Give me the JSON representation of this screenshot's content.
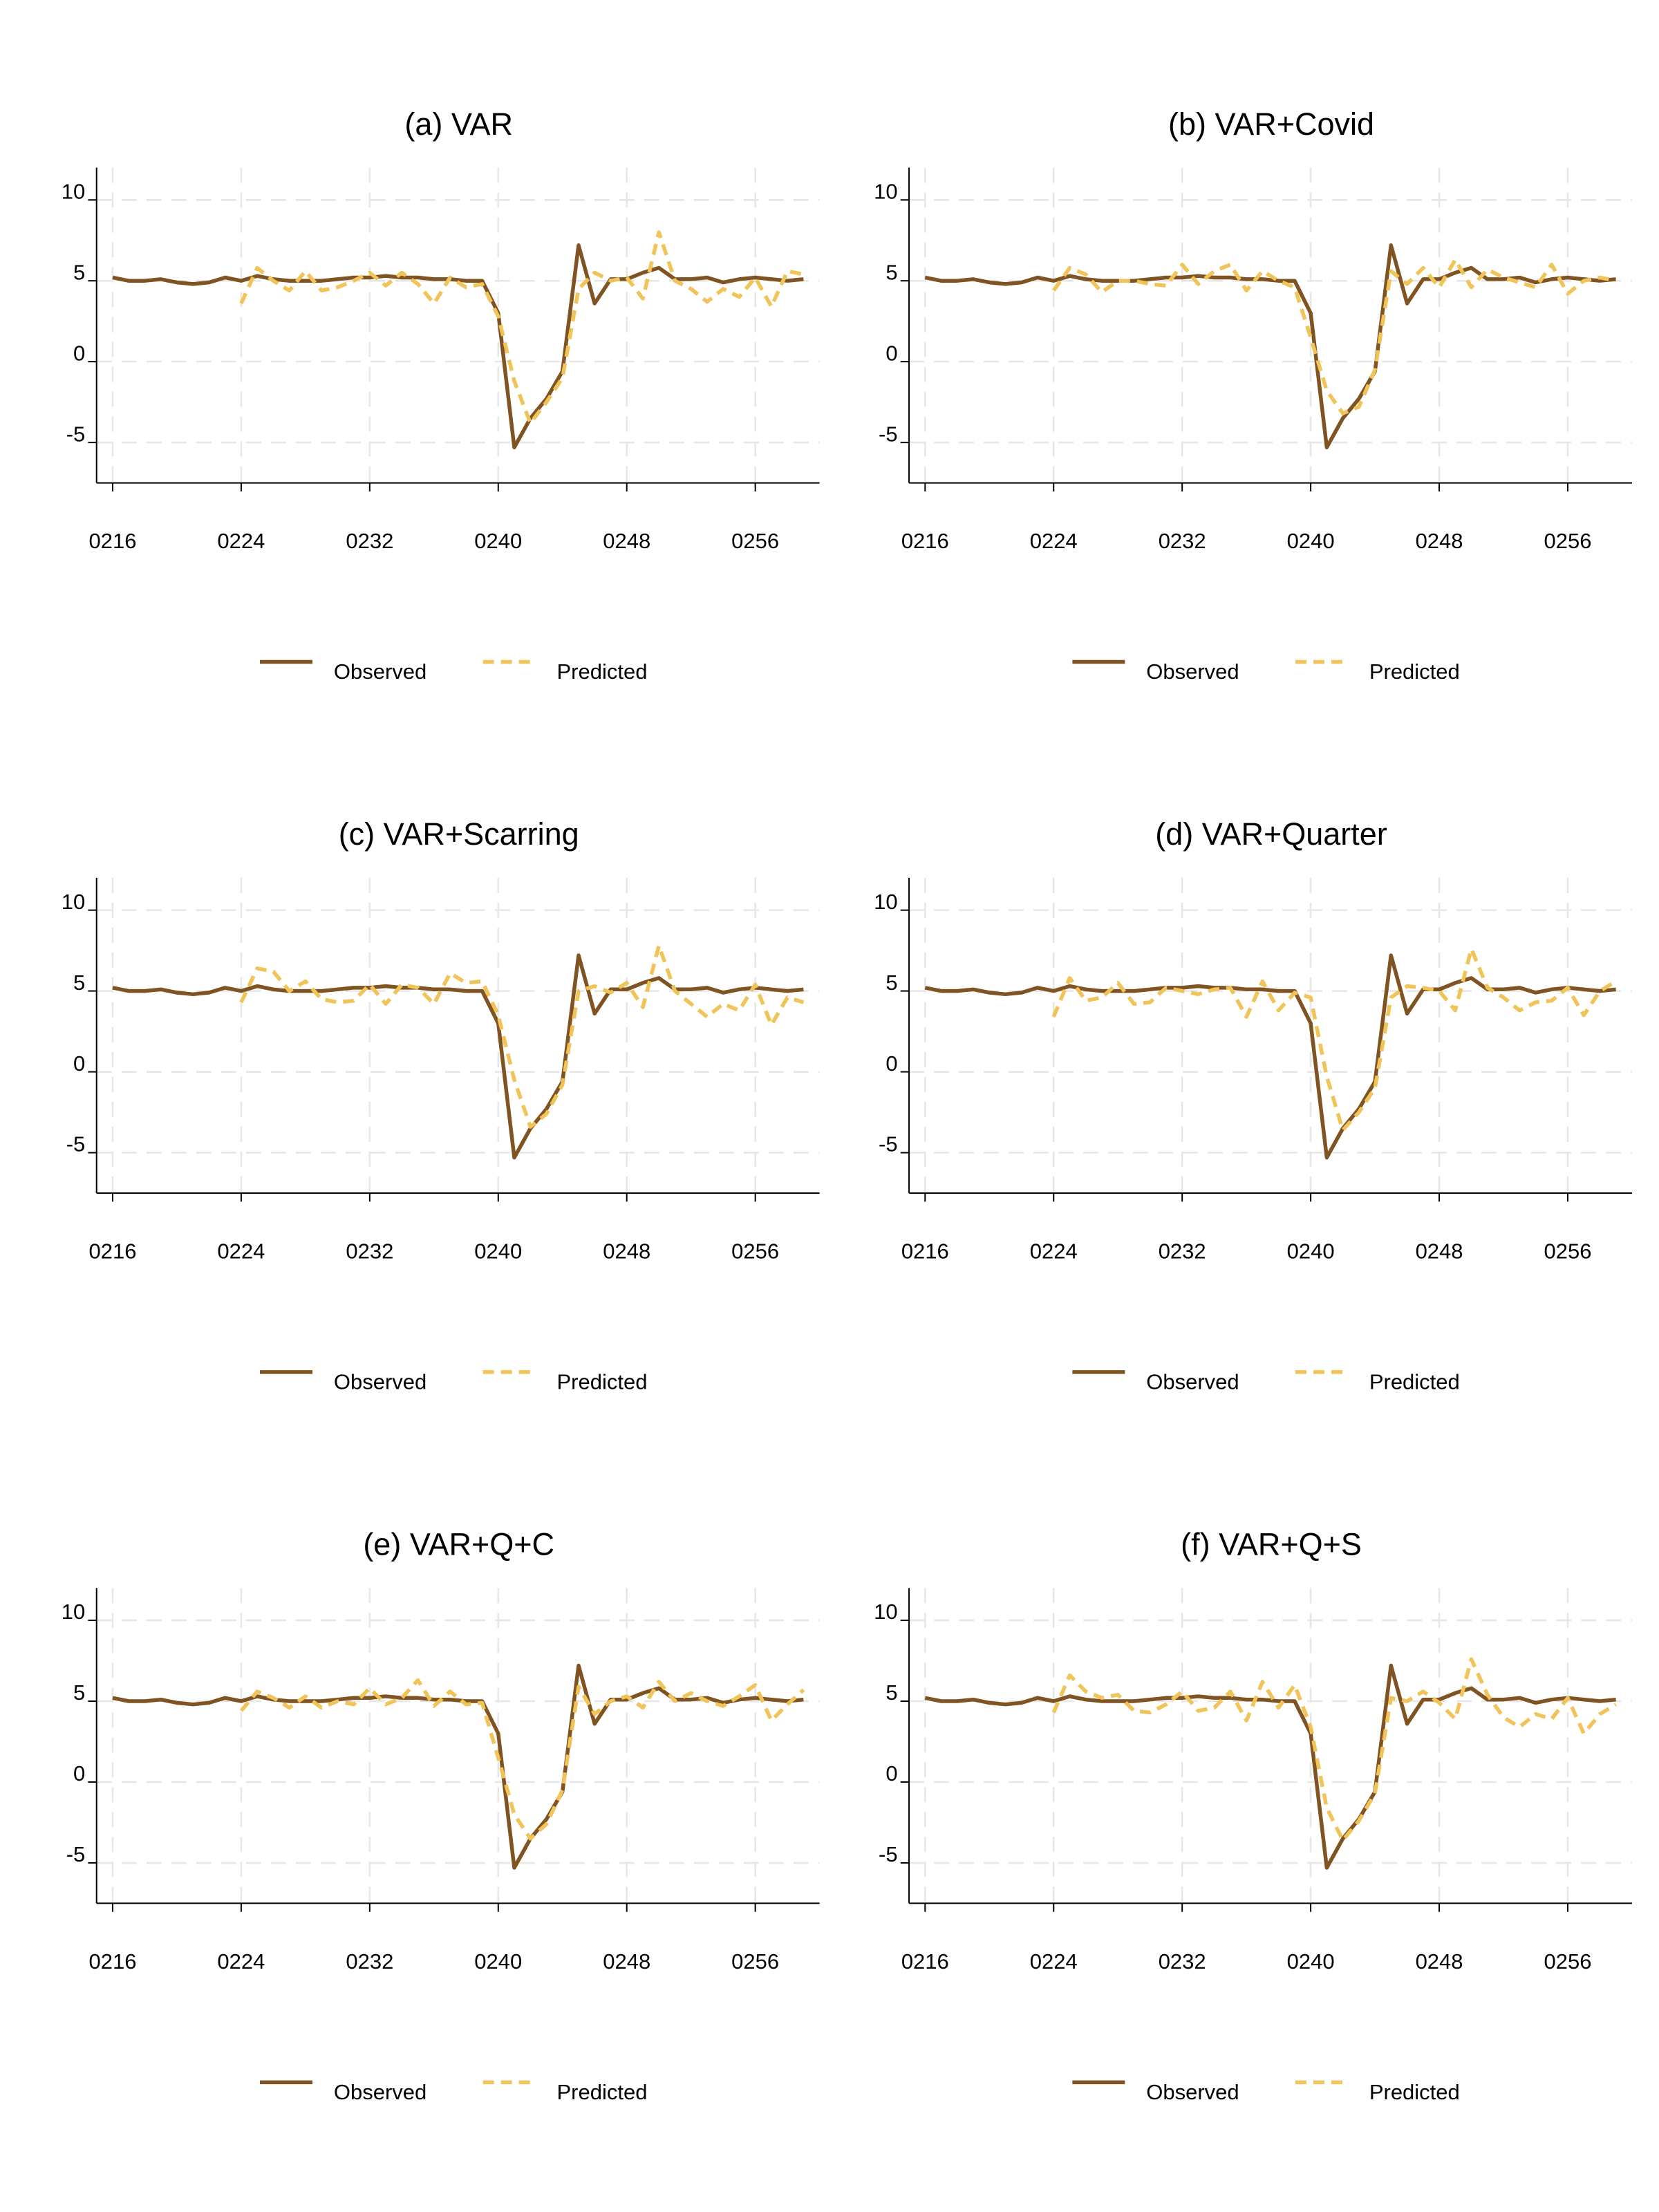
{
  "chart_data": [
    {
      "type": "line",
      "title": "(a) VAR",
      "x": [
        216,
        217,
        218,
        219,
        220,
        221,
        222,
        223,
        224,
        225,
        226,
        227,
        228,
        229,
        230,
        231,
        232,
        233,
        234,
        235,
        236,
        237,
        238,
        239,
        240,
        241,
        242,
        243,
        244,
        245,
        246,
        247,
        248,
        249,
        250,
        251,
        252,
        253,
        254,
        255,
        256,
        257,
        258,
        259
      ],
      "series": [
        {
          "name": "Observed",
          "color": "#7f5322",
          "style": "solid",
          "values": [
            5.2,
            5.0,
            5.0,
            5.1,
            4.9,
            4.8,
            4.9,
            5.2,
            5.0,
            5.3,
            5.1,
            5.0,
            5.0,
            5.0,
            5.1,
            5.2,
            5.2,
            5.3,
            5.2,
            5.2,
            5.1,
            5.1,
            5.0,
            5.0,
            3.0,
            -5.3,
            -3.5,
            -2.3,
            -0.6,
            7.2,
            3.6,
            5.1,
            5.1,
            5.5,
            5.8,
            5.1,
            5.1,
            5.2,
            4.9,
            5.1,
            5.2,
            5.1,
            5.0,
            5.1
          ]
        },
        {
          "name": "Predicted",
          "color": "#f0c458",
          "style": "dashed",
          "values": [
            null,
            null,
            null,
            null,
            null,
            null,
            null,
            null,
            3.6,
            5.8,
            5.0,
            4.4,
            5.6,
            4.4,
            4.6,
            5.0,
            5.5,
            4.7,
            5.5,
            4.8,
            3.6,
            5.2,
            4.6,
            4.8,
            2.8,
            -1.2,
            -3.8,
            -2.5,
            -1.0,
            4.5,
            5.5,
            5.0,
            5.2,
            3.9,
            8.0,
            5.0,
            4.5,
            3.7,
            4.5,
            4.0,
            5.2,
            3.4,
            5.6,
            5.4
          ]
        }
      ],
      "xlim": [
        215,
        260
      ],
      "xticks": [
        {
          "value": 216,
          "label": "0216"
        },
        {
          "value": 224,
          "label": "0224"
        },
        {
          "value": 232,
          "label": "0232"
        },
        {
          "value": 240,
          "label": "0240"
        },
        {
          "value": 248,
          "label": "0248"
        },
        {
          "value": 256,
          "label": "0256"
        }
      ],
      "ylim": [
        -7.5,
        12
      ],
      "yticks": [
        -5,
        0,
        5,
        10
      ],
      "grid": true
    },
    {
      "type": "line",
      "title": "(b) VAR+Covid",
      "x": [
        216,
        217,
        218,
        219,
        220,
        221,
        222,
        223,
        224,
        225,
        226,
        227,
        228,
        229,
        230,
        231,
        232,
        233,
        234,
        235,
        236,
        237,
        238,
        239,
        240,
        241,
        242,
        243,
        244,
        245,
        246,
        247,
        248,
        249,
        250,
        251,
        252,
        253,
        254,
        255,
        256,
        257,
        258,
        259
      ],
      "series": [
        {
          "name": "Observed",
          "color": "#7f5322",
          "style": "solid",
          "values": [
            5.2,
            5.0,
            5.0,
            5.1,
            4.9,
            4.8,
            4.9,
            5.2,
            5.0,
            5.3,
            5.1,
            5.0,
            5.0,
            5.0,
            5.1,
            5.2,
            5.2,
            5.3,
            5.2,
            5.2,
            5.1,
            5.1,
            5.0,
            5.0,
            3.0,
            -5.3,
            -3.5,
            -2.3,
            -0.6,
            7.2,
            3.6,
            5.1,
            5.1,
            5.5,
            5.8,
            5.1,
            5.1,
            5.2,
            4.9,
            5.1,
            5.2,
            5.1,
            5.0,
            5.1
          ]
        },
        {
          "name": "Predicted",
          "color": "#f0c458",
          "style": "dashed",
          "values": [
            null,
            null,
            null,
            null,
            null,
            null,
            null,
            null,
            4.4,
            5.8,
            5.4,
            4.3,
            5.0,
            5.0,
            4.8,
            4.7,
            6.0,
            4.8,
            5.6,
            6.0,
            4.4,
            5.6,
            5.0,
            4.6,
            1.5,
            -1.8,
            -3.2,
            -2.8,
            -0.5,
            5.6,
            4.8,
            5.8,
            4.6,
            6.3,
            4.6,
            5.7,
            5.2,
            4.9,
            4.6,
            6.0,
            4.2,
            5.0,
            5.2,
            5.0
          ]
        }
      ],
      "xlim": [
        215,
        260
      ],
      "xticks": [
        {
          "value": 216,
          "label": "0216"
        },
        {
          "value": 224,
          "label": "0224"
        },
        {
          "value": 232,
          "label": "0232"
        },
        {
          "value": 240,
          "label": "0240"
        },
        {
          "value": 248,
          "label": "0248"
        },
        {
          "value": 256,
          "label": "0256"
        }
      ],
      "ylim": [
        -7.5,
        12
      ],
      "yticks": [
        -5,
        0,
        5,
        10
      ],
      "grid": true
    },
    {
      "type": "line",
      "title": "(c) VAR+Scarring",
      "x": [
        216,
        217,
        218,
        219,
        220,
        221,
        222,
        223,
        224,
        225,
        226,
        227,
        228,
        229,
        230,
        231,
        232,
        233,
        234,
        235,
        236,
        237,
        238,
        239,
        240,
        241,
        242,
        243,
        244,
        245,
        246,
        247,
        248,
        249,
        250,
        251,
        252,
        253,
        254,
        255,
        256,
        257,
        258,
        259
      ],
      "series": [
        {
          "name": "Observed",
          "color": "#7f5322",
          "style": "solid",
          "values": [
            5.2,
            5.0,
            5.0,
            5.1,
            4.9,
            4.8,
            4.9,
            5.2,
            5.0,
            5.3,
            5.1,
            5.0,
            5.0,
            5.0,
            5.1,
            5.2,
            5.2,
            5.3,
            5.2,
            5.2,
            5.1,
            5.1,
            5.0,
            5.0,
            3.0,
            -5.3,
            -3.5,
            -2.3,
            -0.6,
            7.2,
            3.6,
            5.1,
            5.1,
            5.5,
            5.8,
            5.1,
            5.1,
            5.2,
            4.9,
            5.1,
            5.2,
            5.1,
            5.0,
            5.1
          ]
        },
        {
          "name": "Predicted",
          "color": "#f0c458",
          "style": "dashed",
          "values": [
            null,
            null,
            null,
            null,
            null,
            null,
            null,
            null,
            4.3,
            6.4,
            6.2,
            5.0,
            5.6,
            4.5,
            4.3,
            4.4,
            5.4,
            4.2,
            5.4,
            5.2,
            4.2,
            6.1,
            5.5,
            5.6,
            3.5,
            -0.5,
            -3.4,
            -2.6,
            -0.8,
            5.0,
            5.3,
            4.9,
            5.5,
            4.0,
            7.8,
            5.0,
            4.2,
            3.4,
            4.2,
            3.8,
            5.4,
            2.9,
            4.6,
            4.3
          ]
        }
      ],
      "xlim": [
        215,
        260
      ],
      "xticks": [
        {
          "value": 216,
          "label": "0216"
        },
        {
          "value": 224,
          "label": "0224"
        },
        {
          "value": 232,
          "label": "0232"
        },
        {
          "value": 240,
          "label": "0240"
        },
        {
          "value": 248,
          "label": "0248"
        },
        {
          "value": 256,
          "label": "0256"
        }
      ],
      "ylim": [
        -7.5,
        12
      ],
      "yticks": [
        -5,
        0,
        5,
        10
      ],
      "grid": true
    },
    {
      "type": "line",
      "title": "(d) VAR+Quarter",
      "x": [
        216,
        217,
        218,
        219,
        220,
        221,
        222,
        223,
        224,
        225,
        226,
        227,
        228,
        229,
        230,
        231,
        232,
        233,
        234,
        235,
        236,
        237,
        238,
        239,
        240,
        241,
        242,
        243,
        244,
        245,
        246,
        247,
        248,
        249,
        250,
        251,
        252,
        253,
        254,
        255,
        256,
        257,
        258,
        259
      ],
      "series": [
        {
          "name": "Observed",
          "color": "#7f5322",
          "style": "solid",
          "values": [
            5.2,
            5.0,
            5.0,
            5.1,
            4.9,
            4.8,
            4.9,
            5.2,
            5.0,
            5.3,
            5.1,
            5.0,
            5.0,
            5.0,
            5.1,
            5.2,
            5.2,
            5.3,
            5.2,
            5.2,
            5.1,
            5.1,
            5.0,
            5.0,
            3.0,
            -5.3,
            -3.5,
            -2.3,
            -0.6,
            7.2,
            3.6,
            5.1,
            5.1,
            5.5,
            5.8,
            5.1,
            5.1,
            5.2,
            4.9,
            5.1,
            5.2,
            5.1,
            5.0,
            5.1
          ]
        },
        {
          "name": "Predicted",
          "color": "#f0c458",
          "style": "dashed",
          "values": [
            null,
            null,
            null,
            null,
            null,
            null,
            null,
            null,
            3.4,
            5.8,
            4.4,
            4.6,
            5.5,
            4.2,
            4.3,
            5.2,
            5.0,
            4.8,
            5.1,
            5.2,
            3.4,
            5.6,
            3.8,
            4.9,
            4.6,
            -0.3,
            -3.6,
            -2.5,
            -1.0,
            4.6,
            5.3,
            5.2,
            5.0,
            3.8,
            7.6,
            5.2,
            4.6,
            3.8,
            4.3,
            4.4,
            5.2,
            3.5,
            5.0,
            5.6
          ]
        }
      ],
      "xlim": [
        215,
        260
      ],
      "xticks": [
        {
          "value": 216,
          "label": "0216"
        },
        {
          "value": 224,
          "label": "0224"
        },
        {
          "value": 232,
          "label": "0232"
        },
        {
          "value": 240,
          "label": "0240"
        },
        {
          "value": 248,
          "label": "0248"
        },
        {
          "value": 256,
          "label": "0256"
        }
      ],
      "ylim": [
        -7.5,
        12
      ],
      "yticks": [
        -5,
        0,
        5,
        10
      ],
      "grid": true
    },
    {
      "type": "line",
      "title": "(e) VAR+Q+C",
      "x": [
        216,
        217,
        218,
        219,
        220,
        221,
        222,
        223,
        224,
        225,
        226,
        227,
        228,
        229,
        230,
        231,
        232,
        233,
        234,
        235,
        236,
        237,
        238,
        239,
        240,
        241,
        242,
        243,
        244,
        245,
        246,
        247,
        248,
        249,
        250,
        251,
        252,
        253,
        254,
        255,
        256,
        257,
        258,
        259
      ],
      "series": [
        {
          "name": "Observed",
          "color": "#7f5322",
          "style": "solid",
          "values": [
            5.2,
            5.0,
            5.0,
            5.1,
            4.9,
            4.8,
            4.9,
            5.2,
            5.0,
            5.3,
            5.1,
            5.0,
            5.0,
            5.0,
            5.1,
            5.2,
            5.2,
            5.3,
            5.2,
            5.2,
            5.1,
            5.1,
            5.0,
            5.0,
            3.0,
            -5.3,
            -3.5,
            -2.3,
            -0.6,
            7.2,
            3.6,
            5.1,
            5.1,
            5.5,
            5.8,
            5.1,
            5.1,
            5.2,
            4.9,
            5.1,
            5.2,
            5.1,
            5.0,
            5.1
          ]
        },
        {
          "name": "Predicted",
          "color": "#f0c458",
          "style": "dashed",
          "values": [
            null,
            null,
            null,
            null,
            null,
            null,
            null,
            null,
            4.4,
            5.6,
            5.2,
            4.6,
            5.3,
            4.6,
            5.0,
            4.8,
            5.8,
            4.8,
            5.2,
            6.3,
            4.7,
            5.6,
            4.8,
            4.9,
            1.5,
            -2.0,
            -3.5,
            -2.6,
            -0.5,
            5.9,
            4.2,
            5.0,
            5.3,
            4.6,
            6.2,
            5.0,
            5.5,
            5.0,
            4.7,
            5.3,
            6.0,
            3.8,
            4.8,
            5.7
          ]
        }
      ],
      "xlim": [
        215,
        260
      ],
      "xticks": [
        {
          "value": 216,
          "label": "0216"
        },
        {
          "value": 224,
          "label": "0224"
        },
        {
          "value": 232,
          "label": "0232"
        },
        {
          "value": 240,
          "label": "0240"
        },
        {
          "value": 248,
          "label": "0248"
        },
        {
          "value": 256,
          "label": "0256"
        }
      ],
      "ylim": [
        -7.5,
        12
      ],
      "yticks": [
        -5,
        0,
        5,
        10
      ],
      "grid": true
    },
    {
      "type": "line",
      "title": "(f) VAR+Q+S",
      "x": [
        216,
        217,
        218,
        219,
        220,
        221,
        222,
        223,
        224,
        225,
        226,
        227,
        228,
        229,
        230,
        231,
        232,
        233,
        234,
        235,
        236,
        237,
        238,
        239,
        240,
        241,
        242,
        243,
        244,
        245,
        246,
        247,
        248,
        249,
        250,
        251,
        252,
        253,
        254,
        255,
        256,
        257,
        258,
        259
      ],
      "series": [
        {
          "name": "Observed",
          "color": "#7f5322",
          "style": "solid",
          "values": [
            5.2,
            5.0,
            5.0,
            5.1,
            4.9,
            4.8,
            4.9,
            5.2,
            5.0,
            5.3,
            5.1,
            5.0,
            5.0,
            5.0,
            5.1,
            5.2,
            5.2,
            5.3,
            5.2,
            5.2,
            5.1,
            5.1,
            5.0,
            5.0,
            3.0,
            -5.3,
            -3.5,
            -2.3,
            -0.6,
            7.2,
            3.6,
            5.1,
            5.1,
            5.5,
            5.8,
            5.1,
            5.1,
            5.2,
            4.9,
            5.1,
            5.2,
            5.1,
            5.0,
            5.1
          ]
        },
        {
          "name": "Predicted",
          "color": "#f0c458",
          "style": "dashed",
          "values": [
            null,
            null,
            null,
            null,
            null,
            null,
            null,
            null,
            4.3,
            6.6,
            5.6,
            5.2,
            5.4,
            4.4,
            4.3,
            4.8,
            5.6,
            4.4,
            4.6,
            5.6,
            3.8,
            6.2,
            4.6,
            6.0,
            3.4,
            -1.6,
            -3.6,
            -2.4,
            -0.7,
            5.2,
            5.0,
            5.6,
            4.9,
            3.9,
            7.6,
            5.4,
            4.0,
            3.4,
            4.2,
            3.9,
            5.2,
            3.0,
            4.2,
            4.8
          ]
        }
      ],
      "xlim": [
        215,
        260
      ],
      "xticks": [
        {
          "value": 216,
          "label": "0216"
        },
        {
          "value": 224,
          "label": "0224"
        },
        {
          "value": 232,
          "label": "0232"
        },
        {
          "value": 240,
          "label": "0240"
        },
        {
          "value": 248,
          "label": "0248"
        },
        {
          "value": 256,
          "label": "0256"
        }
      ],
      "ylim": [
        -7.5,
        12
      ],
      "yticks": [
        -5,
        0,
        5,
        10
      ],
      "grid": true
    }
  ]
}
